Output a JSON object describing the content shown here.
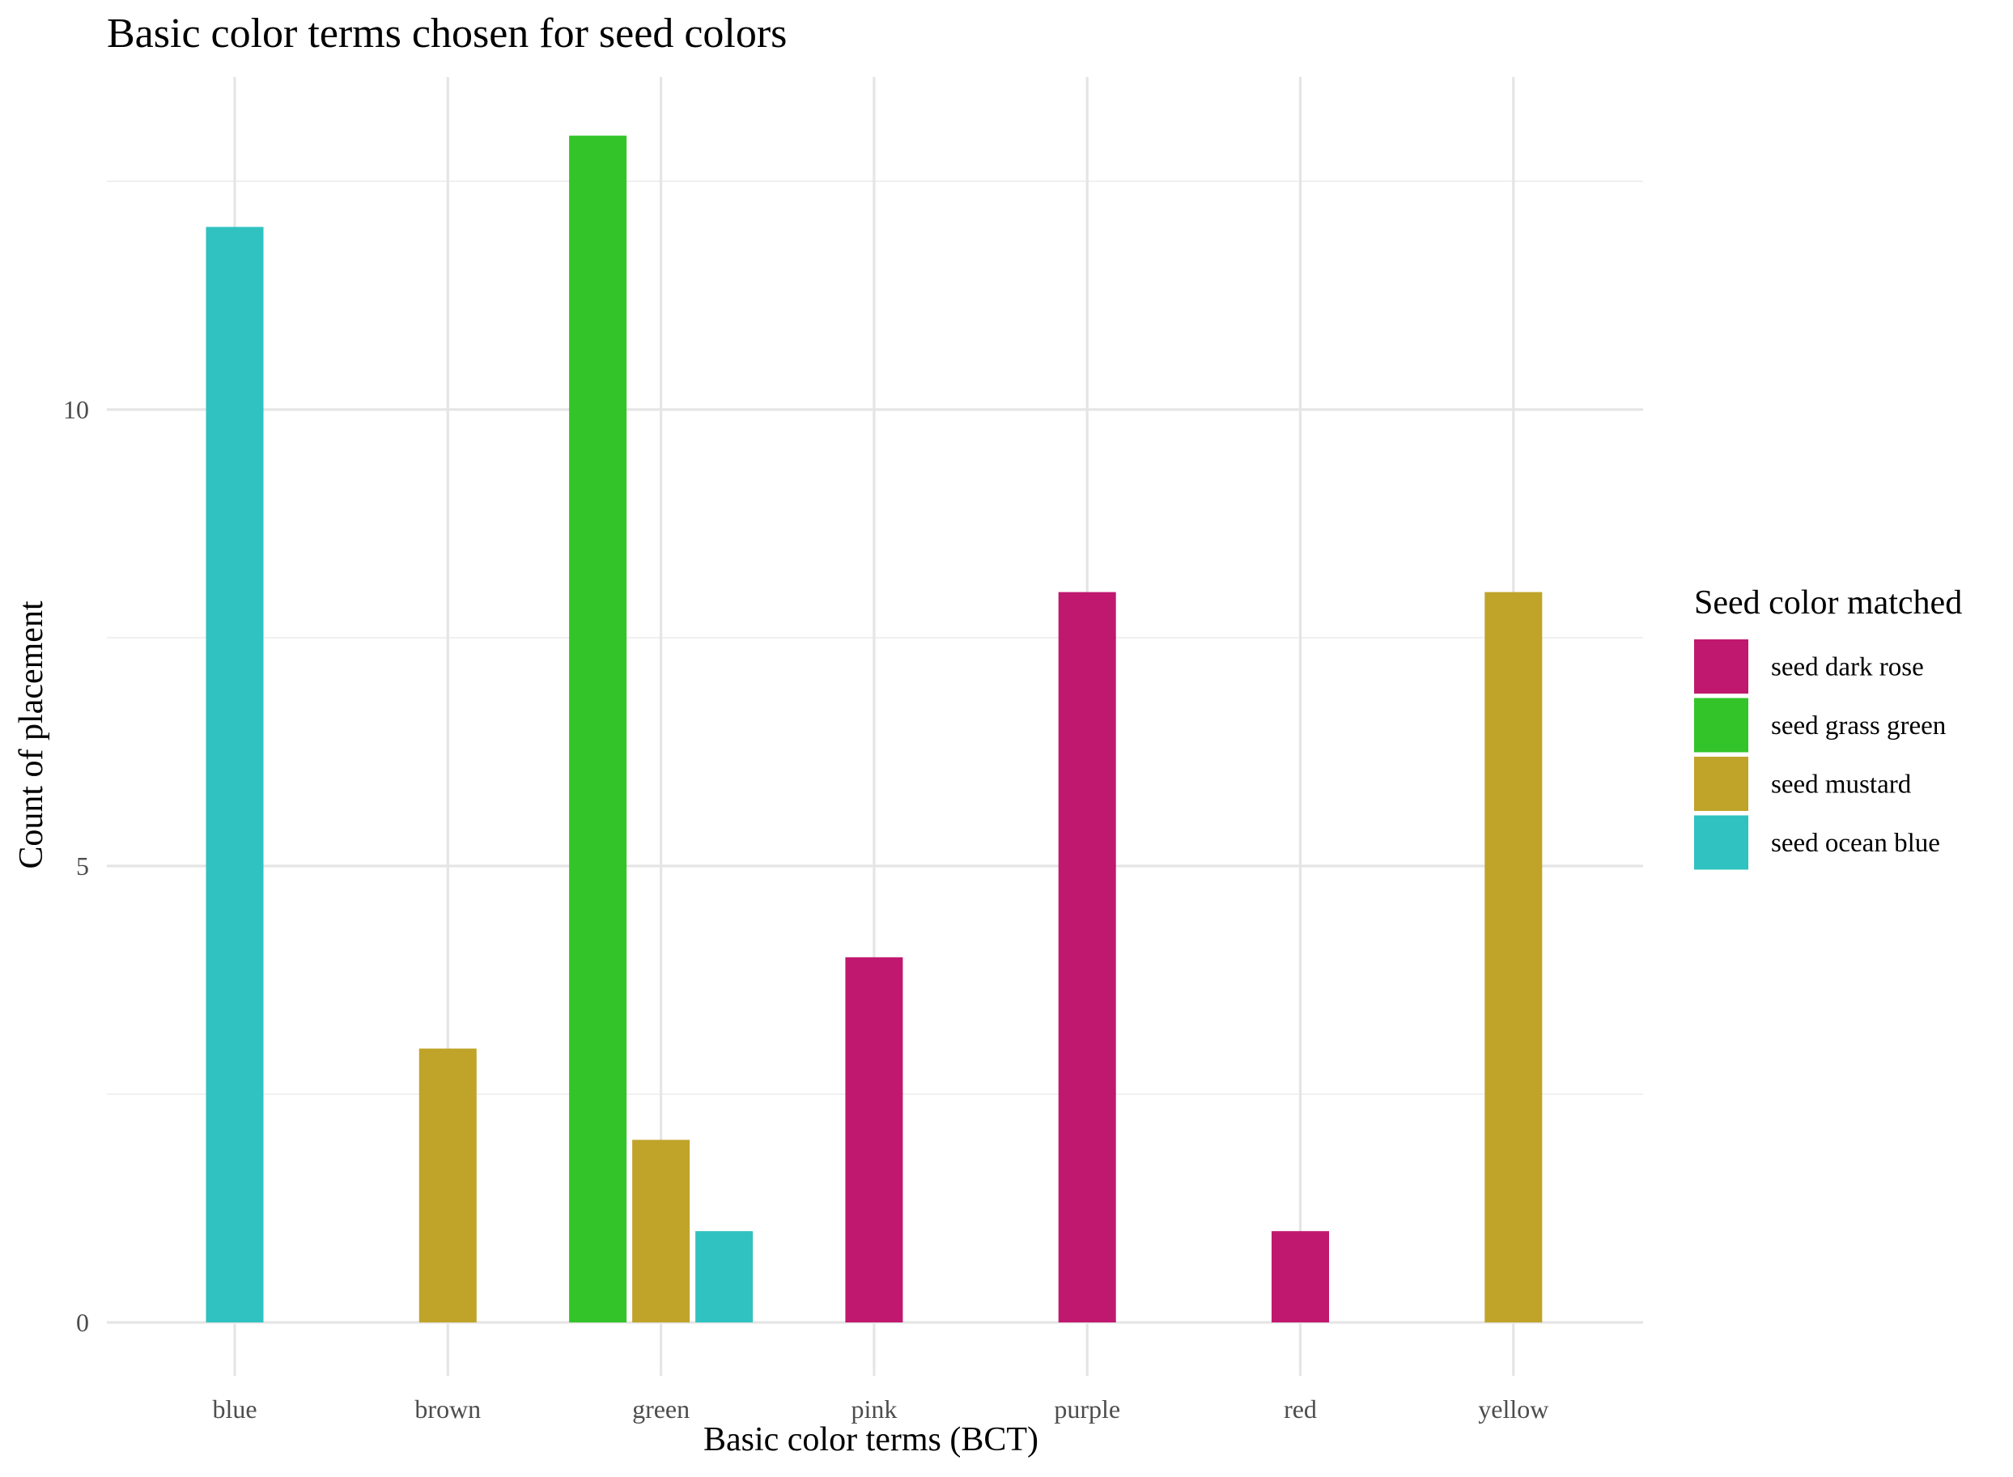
{
  "chart_data": {
    "type": "bar",
    "layout": "grouped-dodge",
    "title": "Basic color terms chosen for seed colors",
    "xlabel": "Basic color terms (BCT)",
    "ylabel": "Count of placement",
    "categories": [
      "blue",
      "brown",
      "green",
      "pink",
      "purple",
      "red",
      "yellow"
    ],
    "ylim": [
      0,
      13.5
    ],
    "y_ticks": [
      0,
      5,
      10
    ],
    "y_tick_labels": [
      "0",
      "5",
      "10"
    ],
    "y_minor_ticks": [
      2.5,
      7.5,
      12.5
    ],
    "grid": true,
    "legend": {
      "title": "Seed color matched",
      "position": "right"
    },
    "series": [
      {
        "name": "seed dark rose",
        "color": "#c0186f",
        "values": [
          null,
          null,
          null,
          4,
          8,
          1,
          null
        ]
      },
      {
        "name": "seed grass green",
        "color": "#33c42a",
        "values": [
          null,
          null,
          13,
          null,
          null,
          null,
          null
        ]
      },
      {
        "name": "seed mustard",
        "color": "#bfa429",
        "values": [
          null,
          3,
          2,
          null,
          null,
          null,
          8
        ]
      },
      {
        "name": "seed ocean blue",
        "color": "#2fc2c0",
        "values": [
          12,
          null,
          1,
          null,
          null,
          null,
          null
        ]
      }
    ]
  }
}
